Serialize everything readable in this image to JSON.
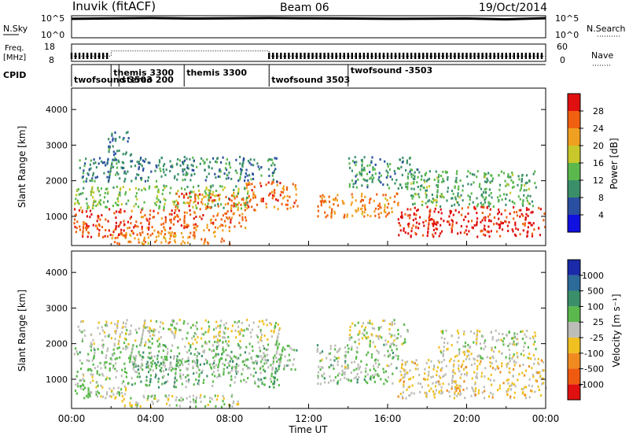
{
  "header": {
    "station": "Inuvik  (fitACF)",
    "beam": "Beam 06",
    "date": "19/Oct/2014"
  },
  "top_panels": {
    "nsky": {
      "label": "N.Sky",
      "ticks": [
        "10^5",
        "10^0"
      ]
    },
    "freq": {
      "label_line1": "Freq.",
      "label_line2": "[MHz]",
      "ticks": [
        "18",
        "8"
      ]
    },
    "nsearch": {
      "label": "N.Search",
      "ticks": [
        "10^5",
        "10^0"
      ]
    },
    "nave": {
      "label": "Nave",
      "ticks": [
        "60",
        "0"
      ]
    },
    "cpid": {
      "label": "CPID",
      "segments": [
        {
          "text": "twofsound 3503",
          "start_h": 0.0
        },
        {
          "text": "themis 3300",
          "start_h": 2.0
        },
        {
          "text": "stereo 200",
          "start_h": 2.4
        },
        {
          "text": "themis 3300",
          "start_h": 5.7
        },
        {
          "text": "twofsound 3503",
          "start_h": 10.0
        },
        {
          "text": "twofsound -3503",
          "start_h": 14.0
        }
      ]
    }
  },
  "xaxis": {
    "label": "Time UT",
    "ticks": [
      "00:00",
      "04:00",
      "08:00",
      "12:00",
      "16:00",
      "20:00",
      "00:00"
    ]
  },
  "power_panel": {
    "ylabel": "Slant Range [km]",
    "yticks": [
      "1000",
      "2000",
      "3000",
      "4000"
    ],
    "colorbar_title": "Power [dB]",
    "colorbar_ticks": [
      "4",
      "8",
      "12",
      "16",
      "20",
      "24",
      "28"
    ],
    "colors": [
      "#1010e0",
      "#2a4fa0",
      "#3a8f6a",
      "#5ab84c",
      "#c8c82a",
      "#f0a020",
      "#f06010",
      "#e01010"
    ]
  },
  "velocity_panel": {
    "ylabel": "Slant Range [km]",
    "yticks": [
      "1000",
      "2000",
      "3000",
      "4000"
    ],
    "colorbar_title": "Velocity [m s⁻¹]",
    "colorbar_ticks": [
      "1000",
      "500",
      "100",
      "25",
      "-25",
      "-100",
      "-500",
      "-1000"
    ],
    "colors": [
      "#1a2aa8",
      "#2c6a9a",
      "#3a8f6a",
      "#5ab84c",
      "#bdbdb8",
      "#f0c020",
      "#f08a20",
      "#f05a10",
      "#e01010"
    ]
  },
  "chart_data": [
    {
      "type": "line",
      "title": "N.Sky / N.Search",
      "x_range_hours": [
        0,
        24
      ],
      "y_scale": "log",
      "ylim": [
        1,
        100000
      ],
      "series": [
        {
          "name": "N.Sky",
          "x": [
            0,
            2,
            4,
            6,
            8,
            10,
            12,
            14,
            16,
            18,
            20,
            22,
            24
          ],
          "values": [
            20000,
            25000,
            30000,
            24000,
            26000,
            30000,
            26000,
            24000,
            20000,
            22000,
            24000,
            16000,
            28000
          ]
        }
      ]
    },
    {
      "type": "line",
      "title": "Freq. [MHz] / Nave",
      "x_range_hours": [
        0,
        24
      ],
      "ylim": [
        8,
        18
      ],
      "series": [
        {
          "name": "Freq.",
          "x": [
            0,
            2,
            2.01,
            10,
            10.01,
            24
          ],
          "values": [
            11,
            11,
            14,
            14,
            11,
            11
          ]
        }
      ]
    },
    {
      "type": "heatmap",
      "title": "Power [dB]",
      "x_range_hours": [
        0,
        24
      ],
      "ylim_km": [
        180,
        4600
      ],
      "value_range": [
        0,
        30
      ],
      "regions": [
        {
          "t0": 0.1,
          "t1": 5.2,
          "r0": 450,
          "r1": 1250,
          "value": 26
        },
        {
          "t0": 0.1,
          "t1": 9.0,
          "r0": 1250,
          "r1": 1900,
          "value": 14
        },
        {
          "t0": 2.0,
          "t1": 8.0,
          "r0": 250,
          "r1": 650,
          "value": 22
        },
        {
          "t0": 5.2,
          "t1": 8.8,
          "r0": 700,
          "r1": 1700,
          "value": 24
        },
        {
          "t0": 8.8,
          "t1": 11.4,
          "r0": 1200,
          "r1": 2000,
          "value": 24
        },
        {
          "t0": 0.3,
          "t1": 10.5,
          "r0": 2000,
          "r1": 2700,
          "value": 9
        },
        {
          "t0": 1.8,
          "t1": 3.0,
          "r0": 2700,
          "r1": 3400,
          "value": 8
        },
        {
          "t0": 12.4,
          "t1": 16.5,
          "r0": 1000,
          "r1": 1700,
          "value": 22
        },
        {
          "t0": 14.0,
          "t1": 17.5,
          "r0": 1800,
          "r1": 2700,
          "value": 10
        },
        {
          "t0": 16.5,
          "t1": 24.0,
          "r0": 450,
          "r1": 1300,
          "value": 28
        },
        {
          "t0": 17.0,
          "t1": 23.5,
          "r0": 1300,
          "r1": 2300,
          "value": 12
        }
      ]
    },
    {
      "type": "heatmap",
      "title": "Velocity [m s⁻¹]",
      "x_range_hours": [
        0,
        24
      ],
      "ylim_km": [
        180,
        4600
      ],
      "value_range": [
        -1000,
        1000
      ],
      "regions": [
        {
          "t0": 0.1,
          "t1": 3.0,
          "r0": 500,
          "r1": 1300,
          "value": 80
        },
        {
          "t0": 0.1,
          "t1": 11.4,
          "r0": 1300,
          "r1": 2000,
          "value": 150
        },
        {
          "t0": 2.0,
          "t1": 8.5,
          "r0": 250,
          "r1": 600,
          "value": 0
        },
        {
          "t0": 3.0,
          "t1": 10.5,
          "r0": 800,
          "r1": 1700,
          "value": 200
        },
        {
          "t0": 0.3,
          "t1": 10.5,
          "r0": 2000,
          "r1": 2700,
          "value": 0
        },
        {
          "t0": 12.4,
          "t1": 16.5,
          "r0": 900,
          "r1": 2000,
          "value": 120
        },
        {
          "t0": 14.0,
          "t1": 17.0,
          "r0": 2000,
          "r1": 2700,
          "value": 0
        },
        {
          "t0": 16.5,
          "t1": 24.0,
          "r0": 500,
          "r1": 1600,
          "value": -150
        },
        {
          "t0": 18.5,
          "t1": 23.5,
          "r0": 1600,
          "r1": 2400,
          "value": 0
        }
      ]
    }
  ]
}
